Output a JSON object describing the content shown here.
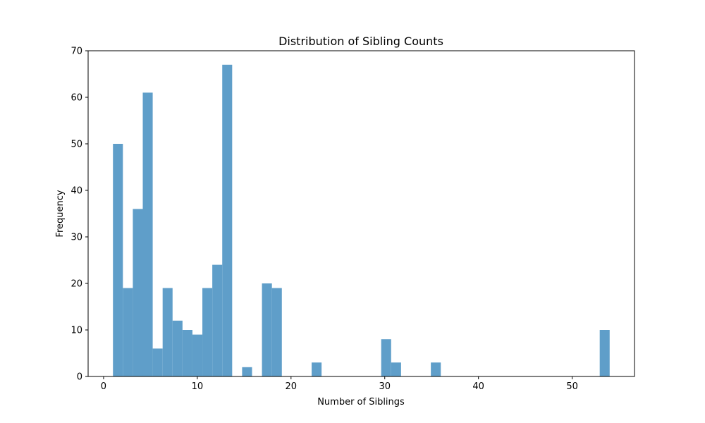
{
  "chart_data": {
    "type": "histogram",
    "title": "Distribution of Sibling Counts",
    "xlabel": "Number of Siblings",
    "ylabel": "Frequency",
    "xlim": [
      -1.65,
      56.65
    ],
    "ylim": [
      0,
      70
    ],
    "xticks": [
      0,
      10,
      20,
      30,
      40,
      50
    ],
    "yticks": [
      0,
      10,
      20,
      30,
      40,
      50,
      60,
      70
    ],
    "bin_start": 1,
    "bin_end": 54,
    "bin_count": 50,
    "counts": [
      50,
      19,
      36,
      61,
      6,
      19,
      12,
      10,
      9,
      19,
      24,
      67,
      0,
      2,
      0,
      20,
      19,
      0,
      0,
      0,
      3,
      0,
      0,
      0,
      0,
      0,
      0,
      8,
      3,
      0,
      0,
      0,
      3,
      0,
      0,
      0,
      0,
      0,
      0,
      0,
      0,
      0,
      0,
      0,
      0,
      0,
      0,
      0,
      0,
      10
    ],
    "bar_color": "#5f9ec9",
    "grid": false
  }
}
